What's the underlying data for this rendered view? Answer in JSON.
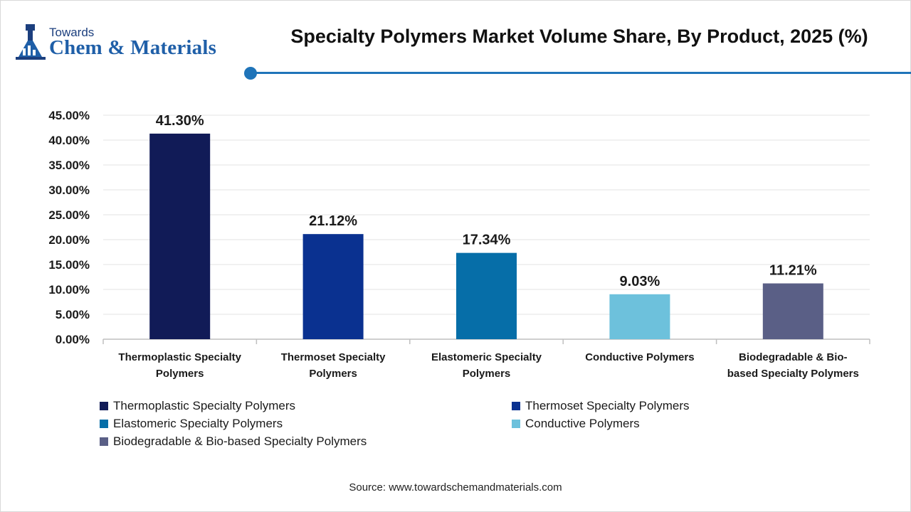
{
  "logo": {
    "line1": "Towards",
    "line2": "Chem & Materials"
  },
  "header": {
    "title": "Specialty Polymers Market Volume Share, By Product, 2025 (%)"
  },
  "chart_data": {
    "type": "bar",
    "title": "Specialty Polymers Market Volume Share, By Product, 2025 (%)",
    "categories": [
      "Thermoplastic Specialty Polymers",
      "Thermoset Specialty Polymers",
      "Elastomeric Specialty Polymers",
      "Conductive Polymers",
      "Biodegradable & Bio-based Specialty Polymers"
    ],
    "category_label_lines": [
      [
        "Thermoplastic Specialty",
        "Polymers"
      ],
      [
        "Thermoset Specialty",
        "Polymers"
      ],
      [
        "Elastomeric Specialty",
        "Polymers"
      ],
      [
        "Conductive Polymers"
      ],
      [
        "Biodegradable & Bio-",
        "based Specialty Polymers"
      ]
    ],
    "values": [
      41.3,
      21.12,
      17.34,
      9.03,
      11.21
    ],
    "value_labels": [
      "41.30%",
      "21.12%",
      "17.34%",
      "9.03%",
      "11.21%"
    ],
    "colors": [
      "#111b57",
      "#0a3190",
      "#066ea8",
      "#6dc1dc",
      "#5a5f86"
    ],
    "ylim": [
      0,
      45
    ],
    "yticks": [
      0,
      5,
      10,
      15,
      20,
      25,
      30,
      35,
      40,
      45
    ],
    "ytick_labels": [
      "0.00%",
      "5.00%",
      "10.00%",
      "15.00%",
      "20.00%",
      "25.00%",
      "30.00%",
      "35.00%",
      "40.00%",
      "45.00%"
    ],
    "xlabel": "",
    "ylabel": "",
    "grid": true,
    "legend_position": "bottom"
  },
  "footer": {
    "source": "Source: www.towardschemandmaterials.com"
  },
  "colors": {
    "accent": "#1f74b9",
    "brand": "#1f5fa8"
  }
}
